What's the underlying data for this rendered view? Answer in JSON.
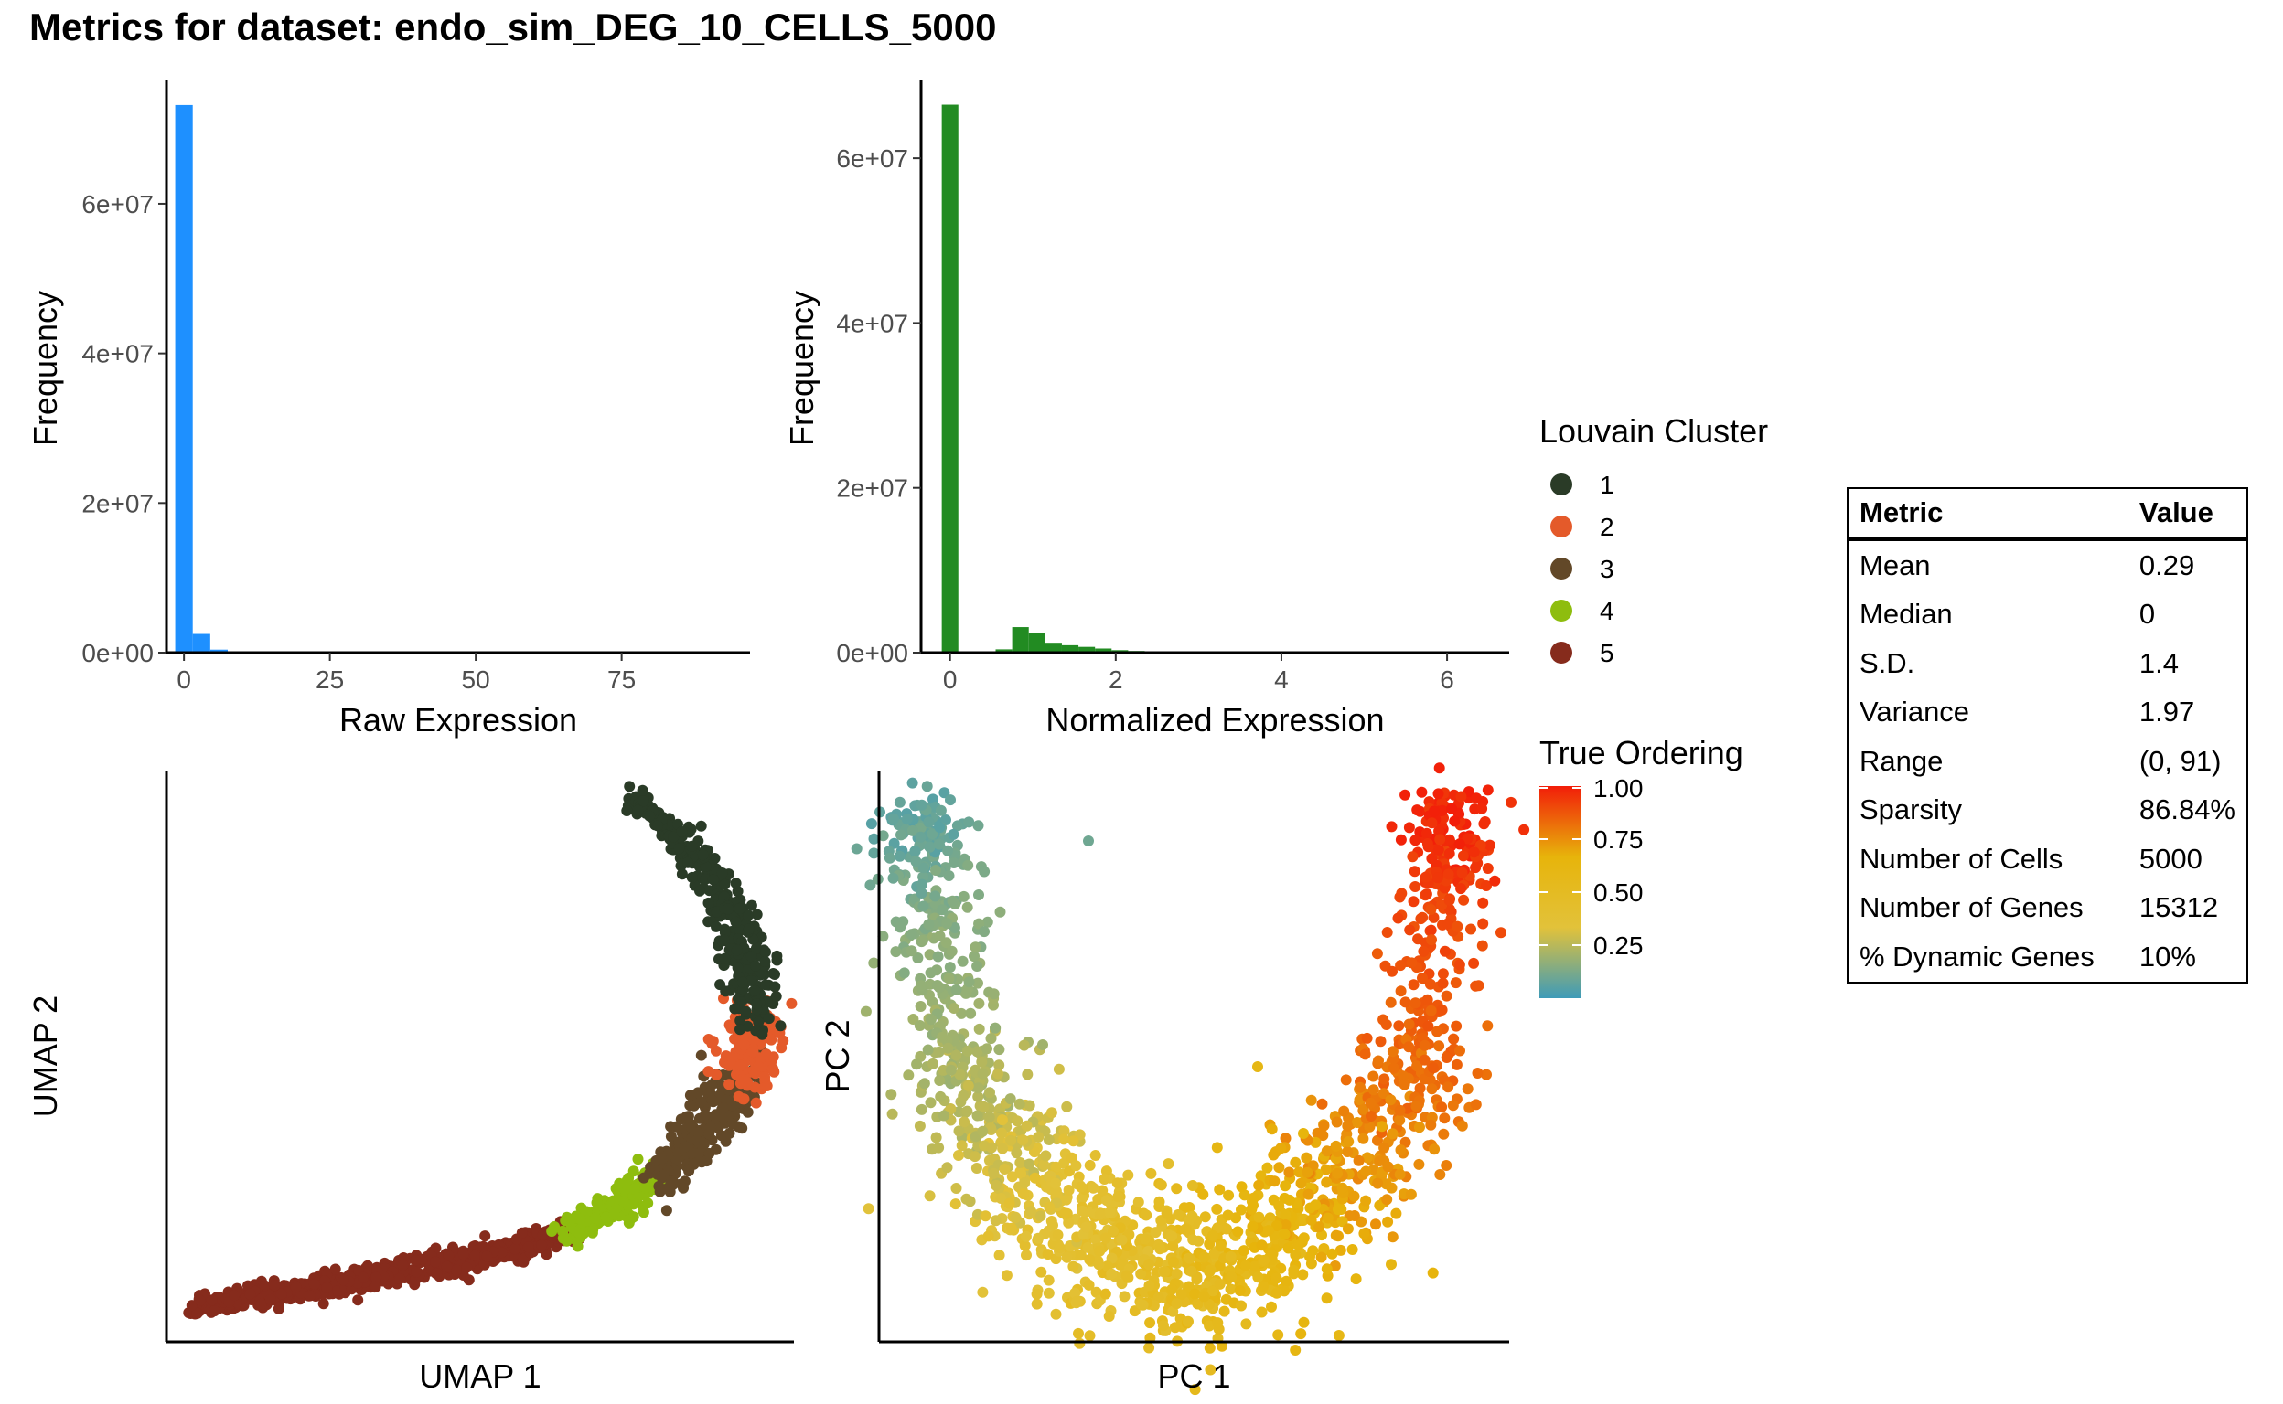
{
  "title": "Metrics for dataset: endo_sim_DEG_10_CELLS_5000",
  "chart_data": [
    {
      "type": "bar",
      "chart": "histogram",
      "xlabel": "Raw Expression",
      "ylabel": "Frequency",
      "xlim": [
        -3,
        97
      ],
      "ylim": [
        0,
        76000000
      ],
      "x_ticks": [
        {
          "value": 0,
          "label": "0"
        },
        {
          "value": 25,
          "label": "25"
        },
        {
          "value": 50,
          "label": "50"
        },
        {
          "value": 75,
          "label": "75"
        }
      ],
      "y_ticks": [
        {
          "value": 0,
          "label": "0e+00"
        },
        {
          "value": 20000000,
          "label": "2e+07"
        },
        {
          "value": 40000000,
          "label": "4e+07"
        },
        {
          "value": 60000000,
          "label": "6e+07"
        }
      ],
      "color": "#1e90ff",
      "bins": [
        {
          "x0": -1.5,
          "x1": 1.5,
          "count": 73200000
        },
        {
          "x0": 1.5,
          "x1": 4.5,
          "count": 2500000
        },
        {
          "x0": 4.5,
          "x1": 7.5,
          "count": 400000
        },
        {
          "x0": 7.5,
          "x1": 10.5,
          "count": 100000
        }
      ]
    },
    {
      "type": "bar",
      "chart": "histogram",
      "xlabel": "Normalized Expression",
      "ylabel": "Frequency",
      "xlim": [
        -0.35,
        6.75
      ],
      "ylim": [
        0,
        69000000
      ],
      "x_ticks": [
        {
          "value": 0,
          "label": "0"
        },
        {
          "value": 2,
          "label": "2"
        },
        {
          "value": 4,
          "label": "4"
        },
        {
          "value": 6,
          "label": "6"
        }
      ],
      "y_ticks": [
        {
          "value": 0,
          "label": "0e+00"
        },
        {
          "value": 20000000,
          "label": "2e+07"
        },
        {
          "value": 40000000,
          "label": "4e+07"
        },
        {
          "value": 60000000,
          "label": "6e+07"
        }
      ],
      "color": "#228b22",
      "bins": [
        {
          "x0": -0.1,
          "x1": 0.1,
          "count": 66500000
        },
        {
          "x0": 0.55,
          "x1": 0.75,
          "count": 400000
        },
        {
          "x0": 0.75,
          "x1": 0.95,
          "count": 3100000
        },
        {
          "x0": 0.95,
          "x1": 1.15,
          "count": 2400000
        },
        {
          "x0": 1.15,
          "x1": 1.35,
          "count": 1200000
        },
        {
          "x0": 1.35,
          "x1": 1.55,
          "count": 900000
        },
        {
          "x0": 1.55,
          "x1": 1.75,
          "count": 700000
        },
        {
          "x0": 1.75,
          "x1": 1.95,
          "count": 500000
        },
        {
          "x0": 1.95,
          "x1": 2.15,
          "count": 300000
        },
        {
          "x0": 2.15,
          "x1": 2.35,
          "count": 200000
        },
        {
          "x0": 2.35,
          "x1": 2.55,
          "count": 150000
        },
        {
          "x0": 2.55,
          "x1": 2.75,
          "count": 100000
        },
        {
          "x0": 2.75,
          "x1": 2.95,
          "count": 60000
        }
      ]
    },
    {
      "type": "scatter",
      "xlabel": "UMAP 1",
      "ylabel": "UMAP 2",
      "legend_title": "Louvain Cluster",
      "n_points": 5000,
      "clusters": [
        {
          "name": "1",
          "color": "#2a3b27"
        },
        {
          "name": "2",
          "color": "#e45a2a"
        },
        {
          "name": "3",
          "color": "#624828"
        },
        {
          "name": "4",
          "color": "#8ebd0e"
        },
        {
          "name": "5",
          "color": "#862b1c"
        }
      ]
    },
    {
      "type": "scatter",
      "xlabel": "PC 1",
      "ylabel": "PC 2",
      "legend_title": "True Ordering",
      "n_points": 5000,
      "colorbar": {
        "range": [
          0,
          1
        ],
        "ticks": [
          {
            "value": 0.25,
            "label": "0.25"
          },
          {
            "value": 0.5,
            "label": "0.50"
          },
          {
            "value": 0.75,
            "label": "0.75"
          },
          {
            "value": 1.0,
            "label": "1.00"
          }
        ],
        "colors": [
          "#3e9bb8",
          "#e2c23a",
          "#e7b40b",
          "#f21d09"
        ]
      }
    }
  ],
  "table": {
    "headers": [
      "Metric",
      "Value"
    ],
    "rows": [
      [
        "Mean",
        "0.29"
      ],
      [
        "Median",
        "0"
      ],
      [
        "S.D.",
        "1.4"
      ],
      [
        "Variance",
        "1.97"
      ],
      [
        "Range",
        "(0, 91)"
      ],
      [
        "Sparsity",
        "86.84%"
      ],
      [
        "Number of Cells",
        "5000"
      ],
      [
        "Number of Genes",
        "15312"
      ],
      [
        "% Dynamic Genes",
        "10%"
      ]
    ]
  }
}
